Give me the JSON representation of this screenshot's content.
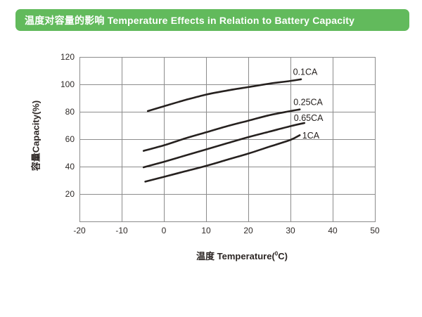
{
  "header": {
    "title": "温度对容量的影响 Temperature Effects in Relation to Battery Capacity",
    "bg_color": "#62ba5c",
    "text_color": "#ffffff"
  },
  "chart_data": {
    "type": "line",
    "title": "",
    "xlabel_prefix": "温度 Temperature(",
    "xlabel_sup": "0",
    "xlabel_suffix": "C)",
    "ylabel": "容量Capacity(%)",
    "xlim": [
      -20,
      50
    ],
    "ylim": [
      0,
      120
    ],
    "xticks": [
      -20,
      -10,
      0,
      10,
      20,
      30,
      40,
      50
    ],
    "yticks": [
      20,
      40,
      60,
      80,
      100,
      120
    ],
    "grid": true,
    "grid_color": "#8c8c8c",
    "line_color": "#26211f",
    "tick_color": "#2f2a28",
    "legend_position": "inline-right",
    "series": [
      {
        "name": "0.1CA",
        "x": [
          -3.8,
          0,
          5,
          10,
          15,
          20,
          25,
          30,
          32.5
        ],
        "y": [
          80.5,
          84,
          88.5,
          92.5,
          95.5,
          98,
          100.5,
          102.5,
          103.7
        ],
        "label_x": 30.6,
        "label_y": 107.0
      },
      {
        "name": "0.25CA",
        "x": [
          -4.8,
          0,
          5,
          10,
          15,
          20,
          25,
          30,
          32.2
        ],
        "y": [
          51.5,
          55.5,
          60.5,
          65,
          69.5,
          73.5,
          77.5,
          80.5,
          81.7
        ],
        "label_x": 30.7,
        "label_y": 85.0
      },
      {
        "name": "0.65CA",
        "x": [
          -4.8,
          0,
          5,
          10,
          15,
          20,
          25,
          30,
          33.3
        ],
        "y": [
          39.5,
          43.5,
          48,
          52.5,
          57,
          61.5,
          65.5,
          69.5,
          71.8
        ],
        "label_x": 30.8,
        "label_y": 73.3
      },
      {
        "name": "1CA",
        "x": [
          -4.4,
          0,
          5,
          10,
          15,
          20,
          25,
          30,
          32.2
        ],
        "y": [
          29,
          32.5,
          36.5,
          40.5,
          45,
          49.5,
          54.5,
          59.5,
          62.9
        ],
        "label_x": 32.8,
        "label_y": 60.4
      }
    ]
  }
}
